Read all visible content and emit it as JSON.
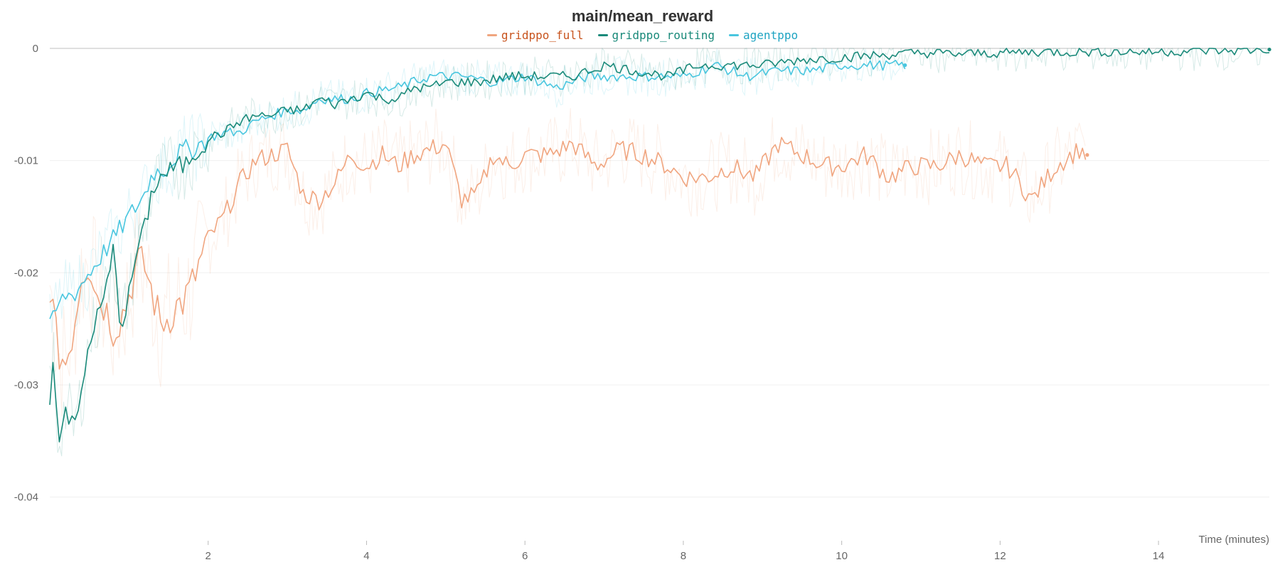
{
  "chart_data": {
    "type": "line",
    "title": "main/mean_reward",
    "xlabel": "Time (minutes)",
    "ylabel": "",
    "xlim": [
      0,
      15.4
    ],
    "ylim": [
      -0.0425,
      0.0
    ],
    "x_ticks": [
      2,
      4,
      6,
      8,
      10,
      12,
      14
    ],
    "y_ticks": [
      0,
      -0.01,
      -0.02,
      -0.03,
      -0.04
    ],
    "y_tick_labels": [
      "0",
      "-0.01",
      "-0.02",
      "-0.03",
      "-0.04"
    ],
    "grid": true,
    "legend_position": "top-center",
    "series": [
      {
        "name": "gridppo_full",
        "color": "#f0a57f",
        "label_color": "#c8541e",
        "x": [
          0,
          0.1,
          0.2,
          0.3,
          0.4,
          0.5,
          0.6,
          0.7,
          0.8,
          0.9,
          1.0,
          1.1,
          1.2,
          1.3,
          1.4,
          1.5,
          1.6,
          1.7,
          1.8,
          1.9,
          2.0,
          2.2,
          2.4,
          2.6,
          2.8,
          3.0,
          3.2,
          3.4,
          3.6,
          3.8,
          4.0,
          4.2,
          4.4,
          4.6,
          4.8,
          5.0,
          5.2,
          5.4,
          5.6,
          5.8,
          6.0,
          6.3,
          6.6,
          6.9,
          7.2,
          7.5,
          7.8,
          8.0,
          8.3,
          8.6,
          8.9,
          9.2,
          9.5,
          9.8,
          10.0,
          10.3,
          10.6,
          10.9,
          11.2,
          11.5,
          11.8,
          12.1,
          12.4,
          12.7,
          13.0,
          13.1
        ],
        "values": [
          -0.021,
          -0.027,
          -0.028,
          -0.025,
          -0.02,
          -0.019,
          -0.022,
          -0.023,
          -0.025,
          -0.024,
          -0.022,
          -0.019,
          -0.0195,
          -0.022,
          -0.0245,
          -0.024,
          -0.023,
          -0.0225,
          -0.021,
          -0.019,
          -0.017,
          -0.015,
          -0.012,
          -0.01,
          -0.0095,
          -0.009,
          -0.013,
          -0.0135,
          -0.012,
          -0.0095,
          -0.0105,
          -0.0095,
          -0.0105,
          -0.0095,
          -0.009,
          -0.0085,
          -0.0135,
          -0.013,
          -0.0095,
          -0.0105,
          -0.0095,
          -0.0095,
          -0.0085,
          -0.0105,
          -0.009,
          -0.0095,
          -0.0105,
          -0.0115,
          -0.0115,
          -0.0105,
          -0.0115,
          -0.0085,
          -0.0095,
          -0.0105,
          -0.0105,
          -0.0095,
          -0.0115,
          -0.0105,
          -0.0105,
          -0.0095,
          -0.0105,
          -0.0105,
          -0.0135,
          -0.0105,
          -0.009,
          -0.0095
        ]
      },
      {
        "name": "gridppo_routing",
        "color": "#1a8a7a",
        "label_color": "#1a8a7a",
        "x": [
          0,
          0.05,
          0.1,
          0.2,
          0.3,
          0.4,
          0.5,
          0.6,
          0.7,
          0.8,
          0.9,
          1.0,
          1.1,
          1.2,
          1.3,
          1.4,
          1.5,
          1.6,
          1.7,
          1.8,
          1.9,
          2.0,
          2.2,
          2.4,
          2.6,
          2.8,
          3.0,
          3.2,
          3.4,
          3.6,
          3.8,
          4.0,
          4.2,
          4.4,
          4.6,
          4.8,
          5.0,
          5.4,
          5.8,
          6.2,
          6.6,
          7.0,
          7.4,
          7.8,
          8.2,
          8.6,
          9.0,
          9.5,
          10.0,
          10.5,
          11.0,
          11.5,
          12.0,
          12.5,
          13.0,
          13.5,
          14.0,
          14.5,
          15.0,
          15.4
        ],
        "values": [
          -0.031,
          -0.027,
          -0.035,
          -0.032,
          -0.034,
          -0.031,
          -0.026,
          -0.024,
          -0.022,
          -0.018,
          -0.025,
          -0.022,
          -0.018,
          -0.016,
          -0.0125,
          -0.0115,
          -0.011,
          -0.0105,
          -0.0105,
          -0.0095,
          -0.009,
          -0.008,
          -0.0075,
          -0.0065,
          -0.006,
          -0.006,
          -0.0055,
          -0.0055,
          -0.0045,
          -0.005,
          -0.0045,
          -0.004,
          -0.0045,
          -0.0045,
          -0.0035,
          -0.0035,
          -0.003,
          -0.003,
          -0.0025,
          -0.0025,
          -0.0025,
          -0.0015,
          -0.002,
          -0.0025,
          -0.0015,
          -0.0015,
          -0.0015,
          -0.001,
          -0.0008,
          -0.0006,
          -0.0004,
          -0.0005,
          -0.0004,
          -0.0003,
          -0.0003,
          -0.0003,
          -0.0003,
          -0.0002,
          -0.0002,
          -0.0001
        ]
      },
      {
        "name": "agentppo",
        "color": "#49c6df",
        "label_color": "#1fa4c2",
        "x": [
          0,
          0.1,
          0.2,
          0.3,
          0.4,
          0.5,
          0.6,
          0.7,
          0.8,
          0.9,
          1.0,
          1.1,
          1.2,
          1.3,
          1.4,
          1.5,
          1.6,
          1.7,
          1.8,
          1.9,
          2.0,
          2.2,
          2.4,
          2.6,
          2.8,
          3.0,
          3.2,
          3.4,
          3.6,
          3.8,
          4.0,
          4.4,
          4.8,
          5.2,
          5.6,
          6.0,
          6.4,
          6.8,
          7.2,
          7.6,
          8.0,
          8.4,
          8.8,
          9.2,
          9.6,
          10.0,
          10.4,
          10.8
        ],
        "values": [
          -0.025,
          -0.023,
          -0.022,
          -0.022,
          -0.021,
          -0.02,
          -0.019,
          -0.018,
          -0.017,
          -0.016,
          -0.015,
          -0.014,
          -0.013,
          -0.011,
          -0.011,
          -0.0105,
          -0.0095,
          -0.009,
          -0.009,
          -0.0085,
          -0.008,
          -0.0075,
          -0.0075,
          -0.0065,
          -0.006,
          -0.0055,
          -0.0055,
          -0.0045,
          -0.0045,
          -0.0045,
          -0.004,
          -0.0035,
          -0.0025,
          -0.0025,
          -0.003,
          -0.0025,
          -0.0035,
          -0.0025,
          -0.0025,
          -0.0025,
          -0.0025,
          -0.0015,
          -0.0025,
          -0.002,
          -0.002,
          -0.0015,
          -0.0015,
          -0.0015
        ]
      }
    ]
  }
}
